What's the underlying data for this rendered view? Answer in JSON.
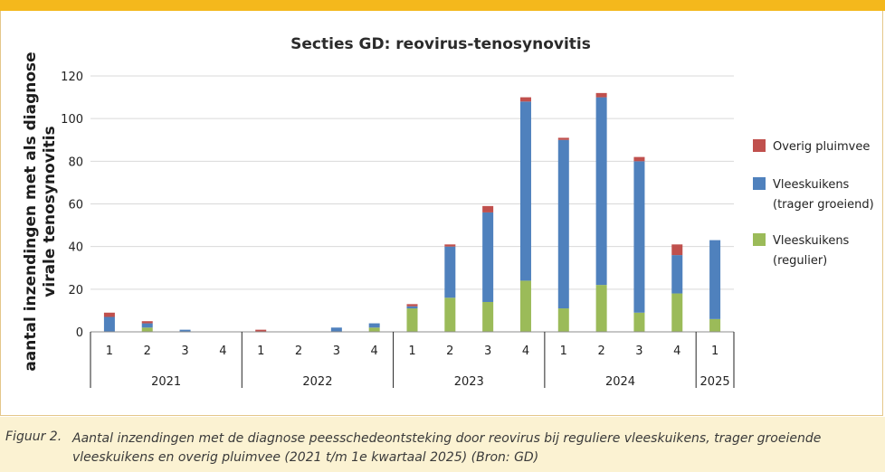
{
  "chart_data": {
    "type": "bar",
    "stacked": true,
    "title": "Secties GD: reovirus-tenosynovitis",
    "ylabel_lines": [
      "aantal inzendingen met als diagnose",
      "virale tenosynovitis"
    ],
    "ylim": [
      0,
      120
    ],
    "yticks": [
      0,
      20,
      40,
      60,
      80,
      100,
      120
    ],
    "grid": "horizontal",
    "legend_placement": "right",
    "years": [
      {
        "label": "2021",
        "quarters": [
          "1",
          "2",
          "3",
          "4"
        ]
      },
      {
        "label": "2022",
        "quarters": [
          "1",
          "2",
          "3",
          "4"
        ]
      },
      {
        "label": "2023",
        "quarters": [
          "1",
          "2",
          "3",
          "4"
        ]
      },
      {
        "label": "2024",
        "quarters": [
          "1",
          "2",
          "3",
          "4"
        ]
      },
      {
        "label": "2025",
        "quarters": [
          "1"
        ]
      }
    ],
    "series": [
      {
        "legend_lines": [
          "Vleeskuikens",
          "(regulier)"
        ],
        "color": "#9bbb59",
        "values": [
          0,
          2,
          0,
          0,
          0,
          0,
          0,
          2,
          11,
          16,
          14,
          24,
          11,
          22,
          9,
          18,
          6
        ]
      },
      {
        "legend_lines": [
          "Vleeskuikens",
          "(trager groeiend)"
        ],
        "color": "#4f81bd",
        "values": [
          7,
          2,
          1,
          0,
          0,
          0,
          2,
          2,
          1,
          24,
          42,
          84,
          79,
          88,
          71,
          18,
          37
        ]
      },
      {
        "legend_lines": [
          "Overig pluimvee"
        ],
        "color": "#c0504d",
        "values": [
          2,
          1,
          0,
          0,
          1,
          0,
          0,
          0,
          1,
          1,
          3,
          2,
          1,
          2,
          2,
          5,
          0
        ]
      }
    ]
  },
  "caption": {
    "label": "Figuur 2.",
    "text": "Aantal inzendingen met de diagnose peesschedeontsteking door reovirus bij reguliere vleeskuikens, trager groeiende vleeskuikens en overig pluimvee (2021 t/m 1e kwartaal 2025) (Bron: GD)"
  }
}
